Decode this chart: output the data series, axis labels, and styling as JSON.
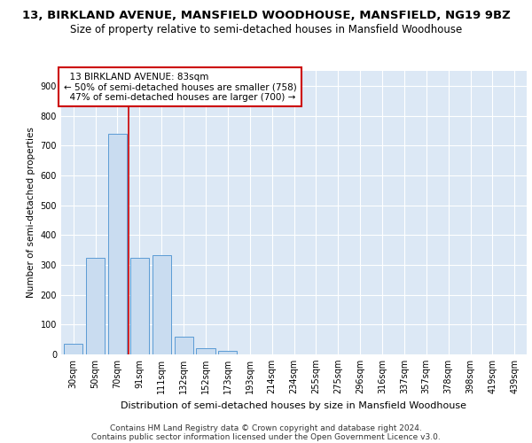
{
  "title1": "13, BIRKLAND AVENUE, MANSFIELD WOODHOUSE, MANSFIELD, NG19 9BZ",
  "title2": "Size of property relative to semi-detached houses in Mansfield Woodhouse",
  "xlabel": "Distribution of semi-detached houses by size in Mansfield Woodhouse",
  "ylabel": "Number of semi-detached properties",
  "footnote1": "Contains HM Land Registry data © Crown copyright and database right 2024.",
  "footnote2": "Contains public sector information licensed under the Open Government Licence v3.0.",
  "categories": [
    "30sqm",
    "50sqm",
    "70sqm",
    "91sqm",
    "111sqm",
    "132sqm",
    "152sqm",
    "173sqm",
    "193sqm",
    "214sqm",
    "234sqm",
    "255sqm",
    "275sqm",
    "296sqm",
    "316sqm",
    "337sqm",
    "357sqm",
    "378sqm",
    "398sqm",
    "419sqm",
    "439sqm"
  ],
  "values": [
    35,
    323,
    740,
    323,
    333,
    58,
    22,
    12,
    0,
    0,
    0,
    0,
    0,
    0,
    0,
    0,
    0,
    0,
    0,
    0,
    0
  ],
  "bar_color": "#c9dcf0",
  "bar_edge_color": "#5b9bd5",
  "property_label": "13 BIRKLAND AVENUE: 83sqm",
  "pct_smaller": 50,
  "count_smaller": 758,
  "pct_larger": 47,
  "count_larger": 700,
  "annotation_box_color": "#ffffff",
  "annotation_box_edge": "#cc0000",
  "vline_color": "#cc0000",
  "ylim": [
    0,
    950
  ],
  "yticks": [
    0,
    100,
    200,
    300,
    400,
    500,
    600,
    700,
    800,
    900
  ],
  "background_color": "#dce8f5",
  "grid_color": "#ffffff",
  "title1_fontsize": 9.5,
  "title2_fontsize": 8.5,
  "xlabel_fontsize": 8,
  "ylabel_fontsize": 7.5,
  "tick_fontsize": 7,
  "annotation_fontsize": 7.5,
  "footnote_fontsize": 6.5
}
